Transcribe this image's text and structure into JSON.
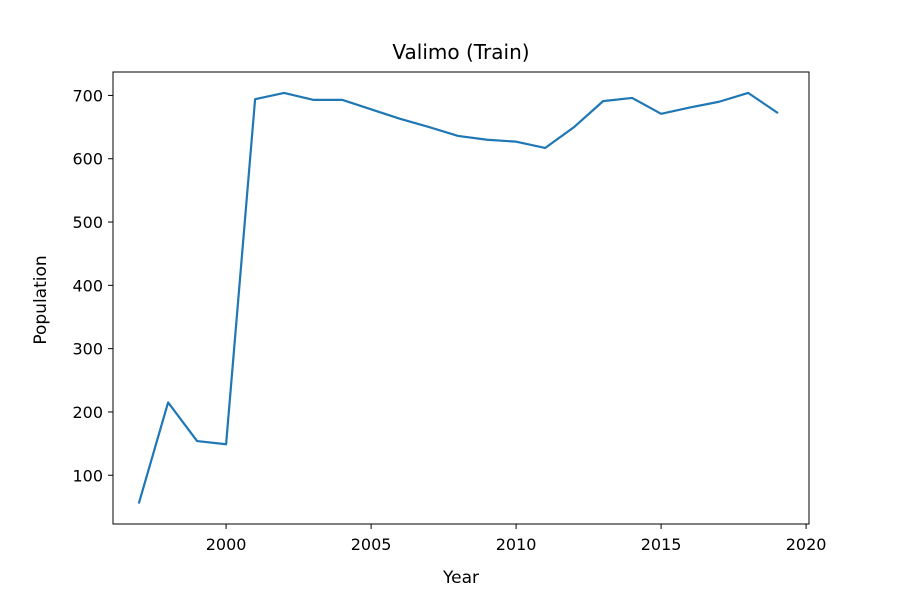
{
  "chart_data": {
    "type": "line",
    "title": "Valimo (Train)",
    "xlabel": "Year",
    "ylabel": "Population",
    "xlim": [
      1996.1,
      2020.1
    ],
    "ylim": [
      23,
      737
    ],
    "x_ticks": [
      2000,
      2005,
      2010,
      2015,
      2020
    ],
    "y_ticks": [
      100,
      200,
      300,
      400,
      500,
      600,
      700
    ],
    "grid": false,
    "series": [
      {
        "color": "#1f77b4",
        "x": [
          1997,
          1998,
          1999,
          2000,
          2001,
          2002,
          2003,
          2004,
          2005,
          2006,
          2007,
          2008,
          2009,
          2010,
          2011,
          2012,
          2013,
          2014,
          2015,
          2016,
          2017,
          2018,
          2019
        ],
        "y": [
          57,
          215,
          154,
          149,
          694,
          704,
          693,
          693,
          678,
          663,
          650,
          636,
          630,
          627,
          617,
          650,
          691,
          696,
          671,
          681,
          690,
          704,
          673
        ]
      }
    ]
  }
}
